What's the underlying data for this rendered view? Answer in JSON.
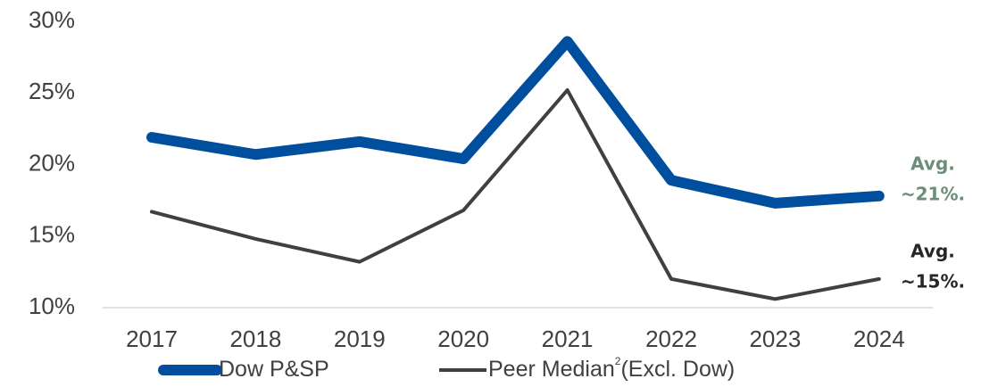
{
  "chart_data": {
    "type": "line",
    "categories": [
      "2017",
      "2018",
      "2019",
      "2020",
      "2021",
      "2022",
      "2023",
      "2024"
    ],
    "series": [
      {
        "name": "Dow P&SP",
        "color": "#004f9f",
        "values": [
          21.9,
          20.7,
          21.6,
          20.4,
          28.6,
          18.9,
          17.3,
          17.8
        ]
      },
      {
        "name": "Peer Median",
        "legend_superscript": "2",
        "legend_suffix": "(Excl. Dow)",
        "color": "#404040",
        "values": [
          16.7,
          14.8,
          13.2,
          16.8,
          25.2,
          12.0,
          10.6,
          12.0
        ]
      }
    ],
    "ylim": [
      10,
      30
    ],
    "yticks": [
      {
        "value": 10,
        "label": "10%"
      },
      {
        "value": 15,
        "label": "15%"
      },
      {
        "value": 20,
        "label": "20%"
      },
      {
        "value": 25,
        "label": "25%"
      },
      {
        "value": 30,
        "label": "30%"
      }
    ],
    "annotations": [
      {
        "lines": [
          "Avg.",
          "~21%."
        ],
        "color": "#6b8e7a"
      },
      {
        "lines": [
          "Avg.",
          "~15%."
        ],
        "color": "#262626"
      }
    ],
    "grid": false
  }
}
